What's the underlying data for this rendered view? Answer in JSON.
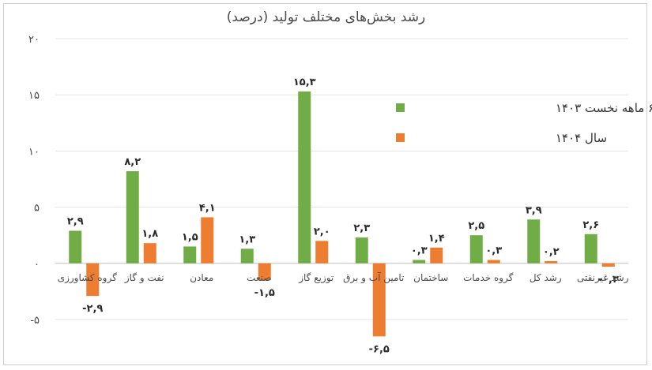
{
  "chart_data": {
    "type": "bar",
    "title": "رشد بخش‌های مختلف تولید (درصد)",
    "categories": [
      "گروه کشاورزی",
      "نفت و گاز",
      "معادن",
      "صنعت",
      "توزیع گاز",
      "تامین آب و برق",
      "ساختمان",
      "گروه خدمات",
      "رشد کل",
      "رشد غیرنفتی"
    ],
    "series": [
      {
        "name": "۶ ماهه نخست ۱۴۰۳",
        "color": "#70ad47",
        "values": [
          2.9,
          8.2,
          1.5,
          1.3,
          15.3,
          2.3,
          0.3,
          2.5,
          3.9,
          2.6
        ],
        "labels": [
          "۲,۹",
          "۸,۲",
          "۱,۵",
          "۱,۳",
          "۱۵,۳",
          "۲,۳",
          "۰,۳",
          "۲,۵",
          "۳,۹",
          "۲,۶"
        ]
      },
      {
        "name": "سال ۱۴۰۴",
        "color": "#ed7d31",
        "values": [
          -2.9,
          1.8,
          4.1,
          -1.5,
          2.0,
          -6.5,
          1.4,
          0.3,
          0.2,
          -0.3
        ],
        "labels": [
          "-۲,۹",
          "۱,۸",
          "۴,۱",
          "-۱,۵",
          "۲,۰",
          "-۶,۵",
          "۱,۴",
          "۰,۳",
          "۰,۲",
          "-۰,۳"
        ]
      }
    ],
    "ylim": [
      -5,
      20
    ],
    "yticks": [
      -5,
      0,
      5,
      10,
      15,
      20
    ],
    "ytick_labels": [
      "-۵",
      "۰",
      "۵",
      "۱۰",
      "۱۵",
      "۲۰"
    ],
    "grid": true,
    "legend": "upper-right inside plot"
  }
}
